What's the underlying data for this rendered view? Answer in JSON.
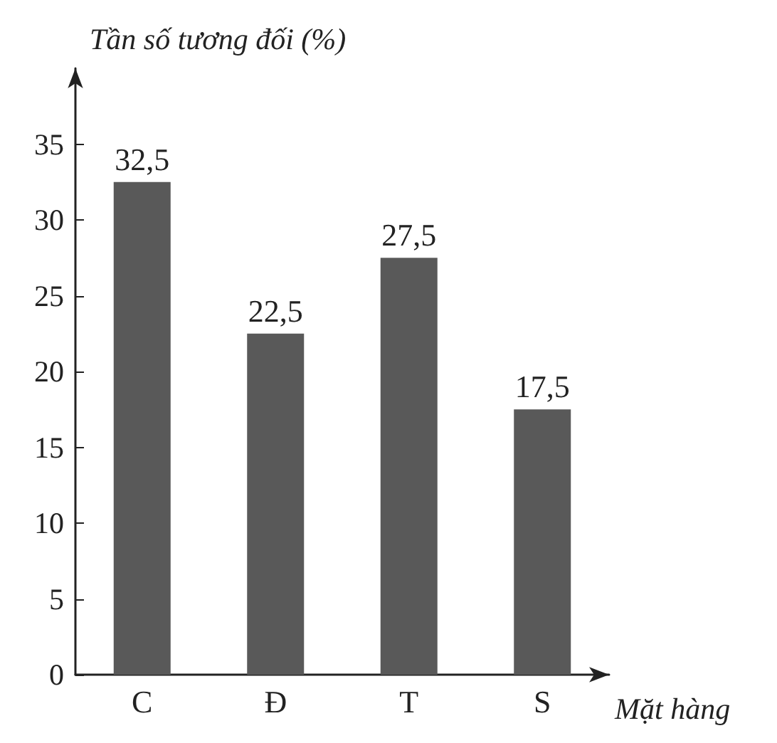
{
  "chart_data": {
    "type": "bar",
    "xlabel": "Mặt hàng",
    "ylabel": "Tần số tương đối (%)",
    "categories": [
      "C",
      "Đ",
      "T",
      "S"
    ],
    "values": [
      32.5,
      22.5,
      27.5,
      17.5
    ],
    "value_labels": [
      "32,5",
      "22,5",
      "27,5",
      "17,5"
    ],
    "color": "#595959",
    "ylim": [
      0,
      40
    ],
    "yticks": [
      0,
      5,
      10,
      15,
      20,
      25,
      30,
      35
    ],
    "grid": false
  }
}
